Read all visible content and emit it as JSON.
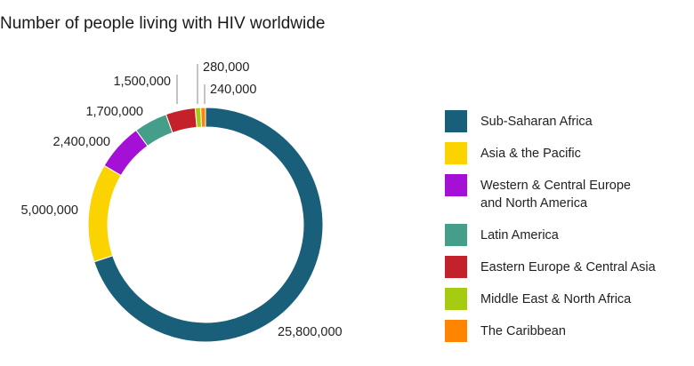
{
  "chart_data": {
    "type": "pie",
    "title": "Number of people living with HIV worldwide",
    "categories": [
      "Sub-Saharan Africa",
      "Asia & the Pacific",
      "Western & Central Europe and North America",
      "Latin America",
      "Eastern Europe & Central Asia",
      "Middle East & North Africa",
      "The Caribbean"
    ],
    "values": [
      25800000,
      5000000,
      2400000,
      1700000,
      1500000,
      280000,
      240000
    ],
    "data_labels": [
      "25,800,000",
      "5,000,000",
      "2,400,000",
      "1,700,000",
      "1,500,000",
      "280,000",
      "240,000"
    ],
    "colors": [
      "#1a5f7a",
      "#fbd400",
      "#a510d6",
      "#449e8a",
      "#c4222b",
      "#a6cc12",
      "#ff8400"
    ],
    "style": "donut",
    "legend_position": "right"
  }
}
